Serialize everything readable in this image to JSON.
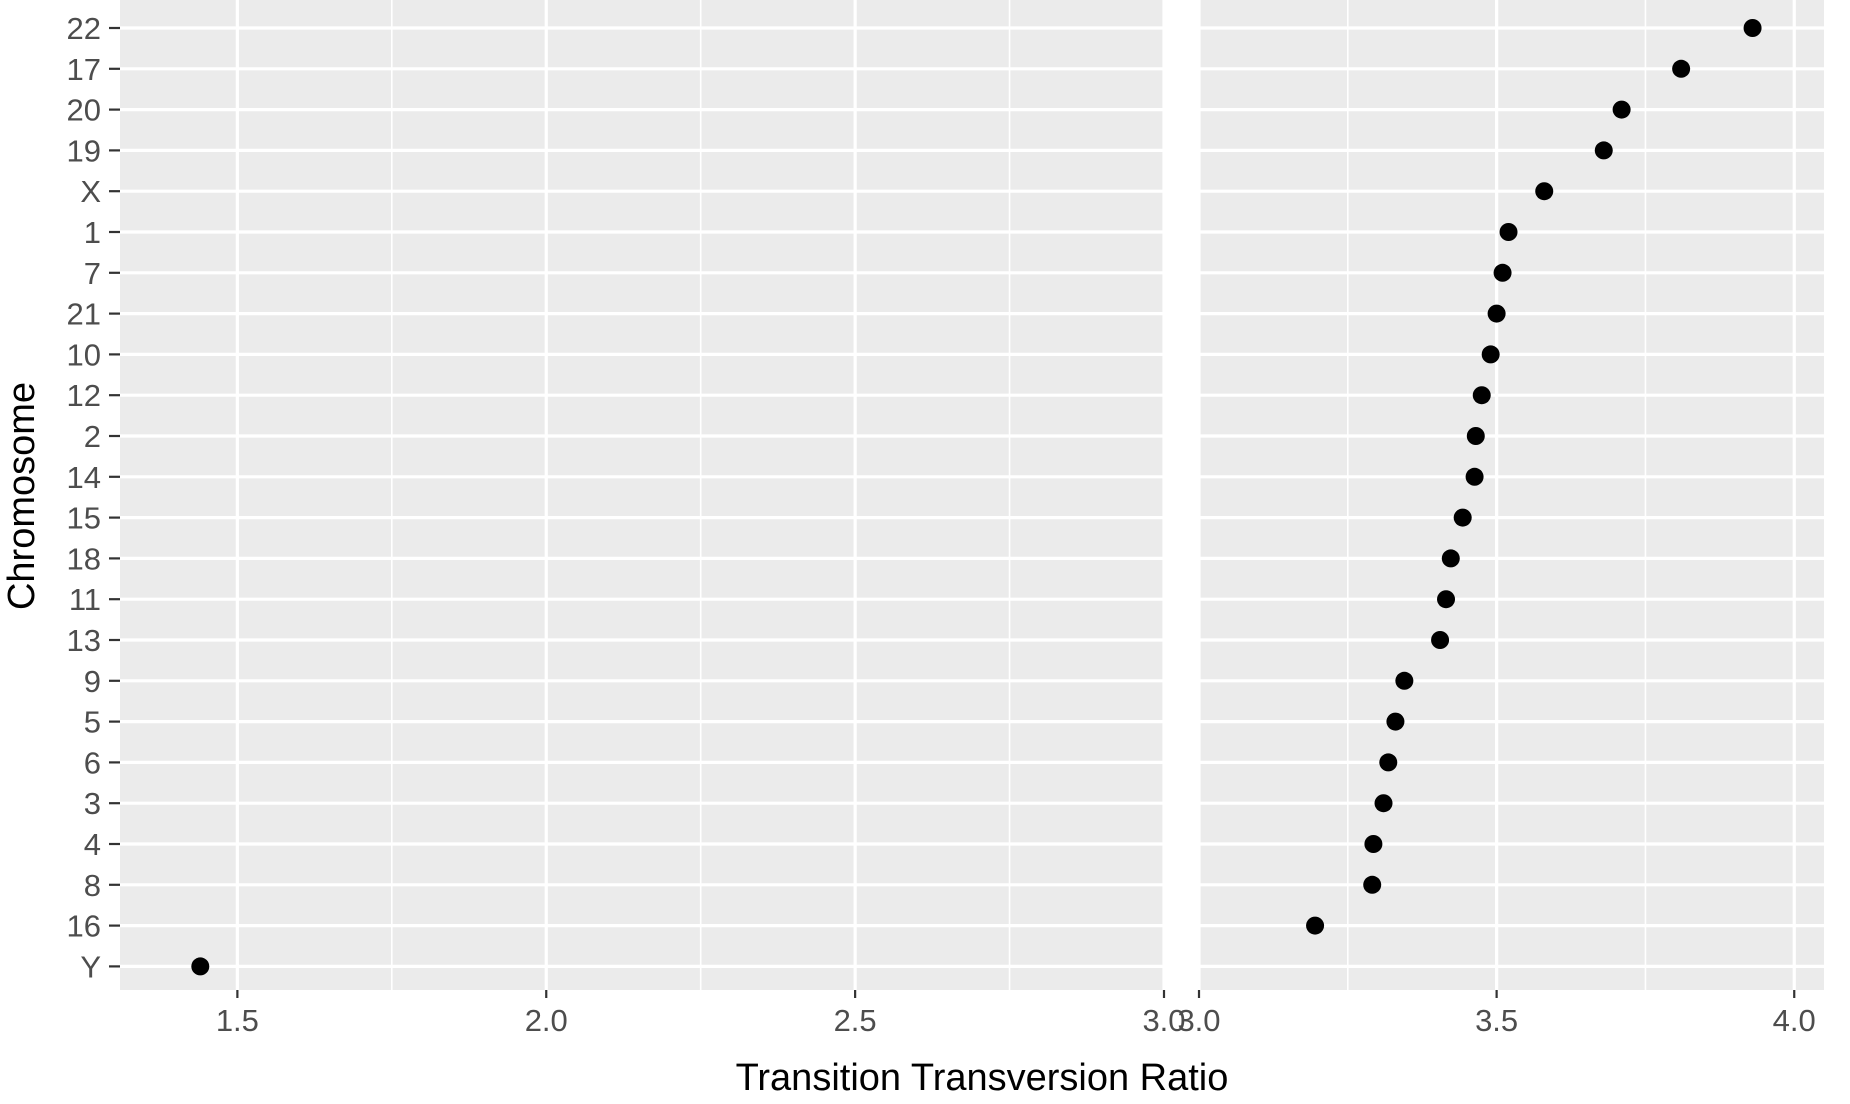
{
  "chart_data": {
    "type": "scatter",
    "title": "",
    "xlabel": "Transition Transversion Ratio",
    "ylabel": "Chromosome",
    "grid": true,
    "legend": "none",
    "point_color": "#000000",
    "panel_background": "#EBEBEB",
    "axis_break": {
      "between": [
        3.0,
        3.0
      ]
    },
    "panels": [
      {
        "xlim": [
          1.31,
          3.0
        ],
        "x_ticks": [
          "1.5",
          "2.0",
          "2.5",
          "3.0"
        ]
      },
      {
        "xlim": [
          3.0,
          4.05
        ],
        "x_ticks": [
          "3.0",
          "3.5",
          "4.0"
        ]
      }
    ],
    "categories": [
      "22",
      "17",
      "20",
      "19",
      "X",
      "1",
      "7",
      "21",
      "10",
      "12",
      "2",
      "14",
      "15",
      "18",
      "11",
      "13",
      "9",
      "5",
      "6",
      "3",
      "4",
      "8",
      "16",
      "Y"
    ],
    "values": [
      3.93,
      3.81,
      3.71,
      3.68,
      3.58,
      3.52,
      3.51,
      3.5,
      3.49,
      3.475,
      3.465,
      3.463,
      3.443,
      3.423,
      3.415,
      3.405,
      3.345,
      3.33,
      3.318,
      3.31,
      3.293,
      3.291,
      3.195,
      1.44
    ]
  }
}
